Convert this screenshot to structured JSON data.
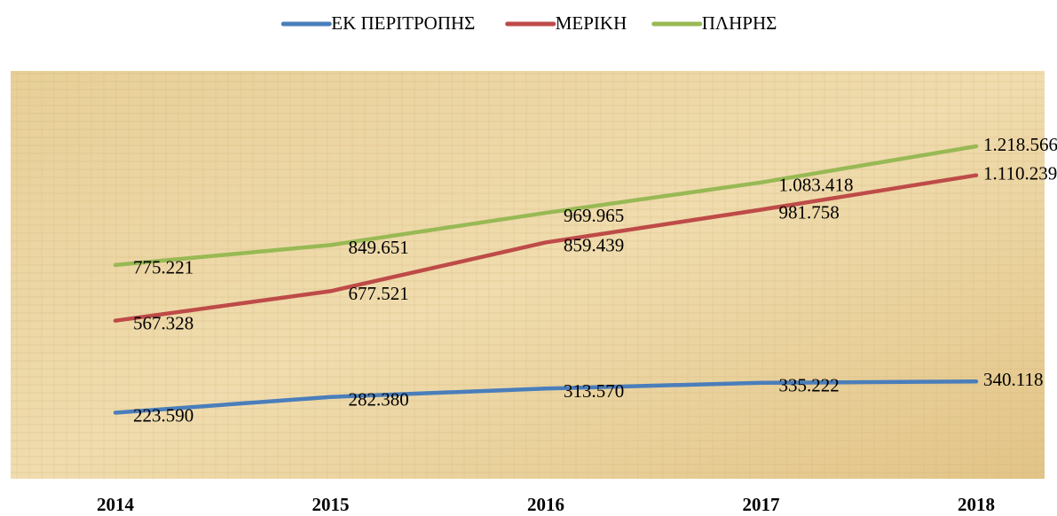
{
  "chart_data": {
    "type": "line",
    "categories": [
      "2014",
      "2015",
      "2016",
      "2017",
      "2018"
    ],
    "series": [
      {
        "name": "ΕΚ ΠΕΡΙΤΡΟΠΗΣ",
        "color": "#4a7ebb",
        "values": [
          223590,
          282380,
          313570,
          335222,
          340118
        ],
        "value_labels": [
          "223.590",
          "282.380",
          "313.570",
          "335.222",
          "340.118"
        ]
      },
      {
        "name": "ΜΕΡΙΚΗ",
        "color": "#be4b48",
        "values": [
          567328,
          677521,
          859439,
          981758,
          1110239
        ],
        "value_labels": [
          "567.328",
          "677.521",
          "859.439",
          "981.758",
          "1.110.239"
        ]
      },
      {
        "name": "ΠΛΗΡΗΣ",
        "color": "#98b954",
        "values": [
          775221,
          849651,
          969965,
          1083418,
          1218566
        ],
        "value_labels": [
          "775.221",
          "849.651",
          "969.965",
          "1.083.418",
          "1.218.566"
        ]
      }
    ],
    "ylim": [
      0,
      1500000
    ],
    "legend": "top"
  }
}
